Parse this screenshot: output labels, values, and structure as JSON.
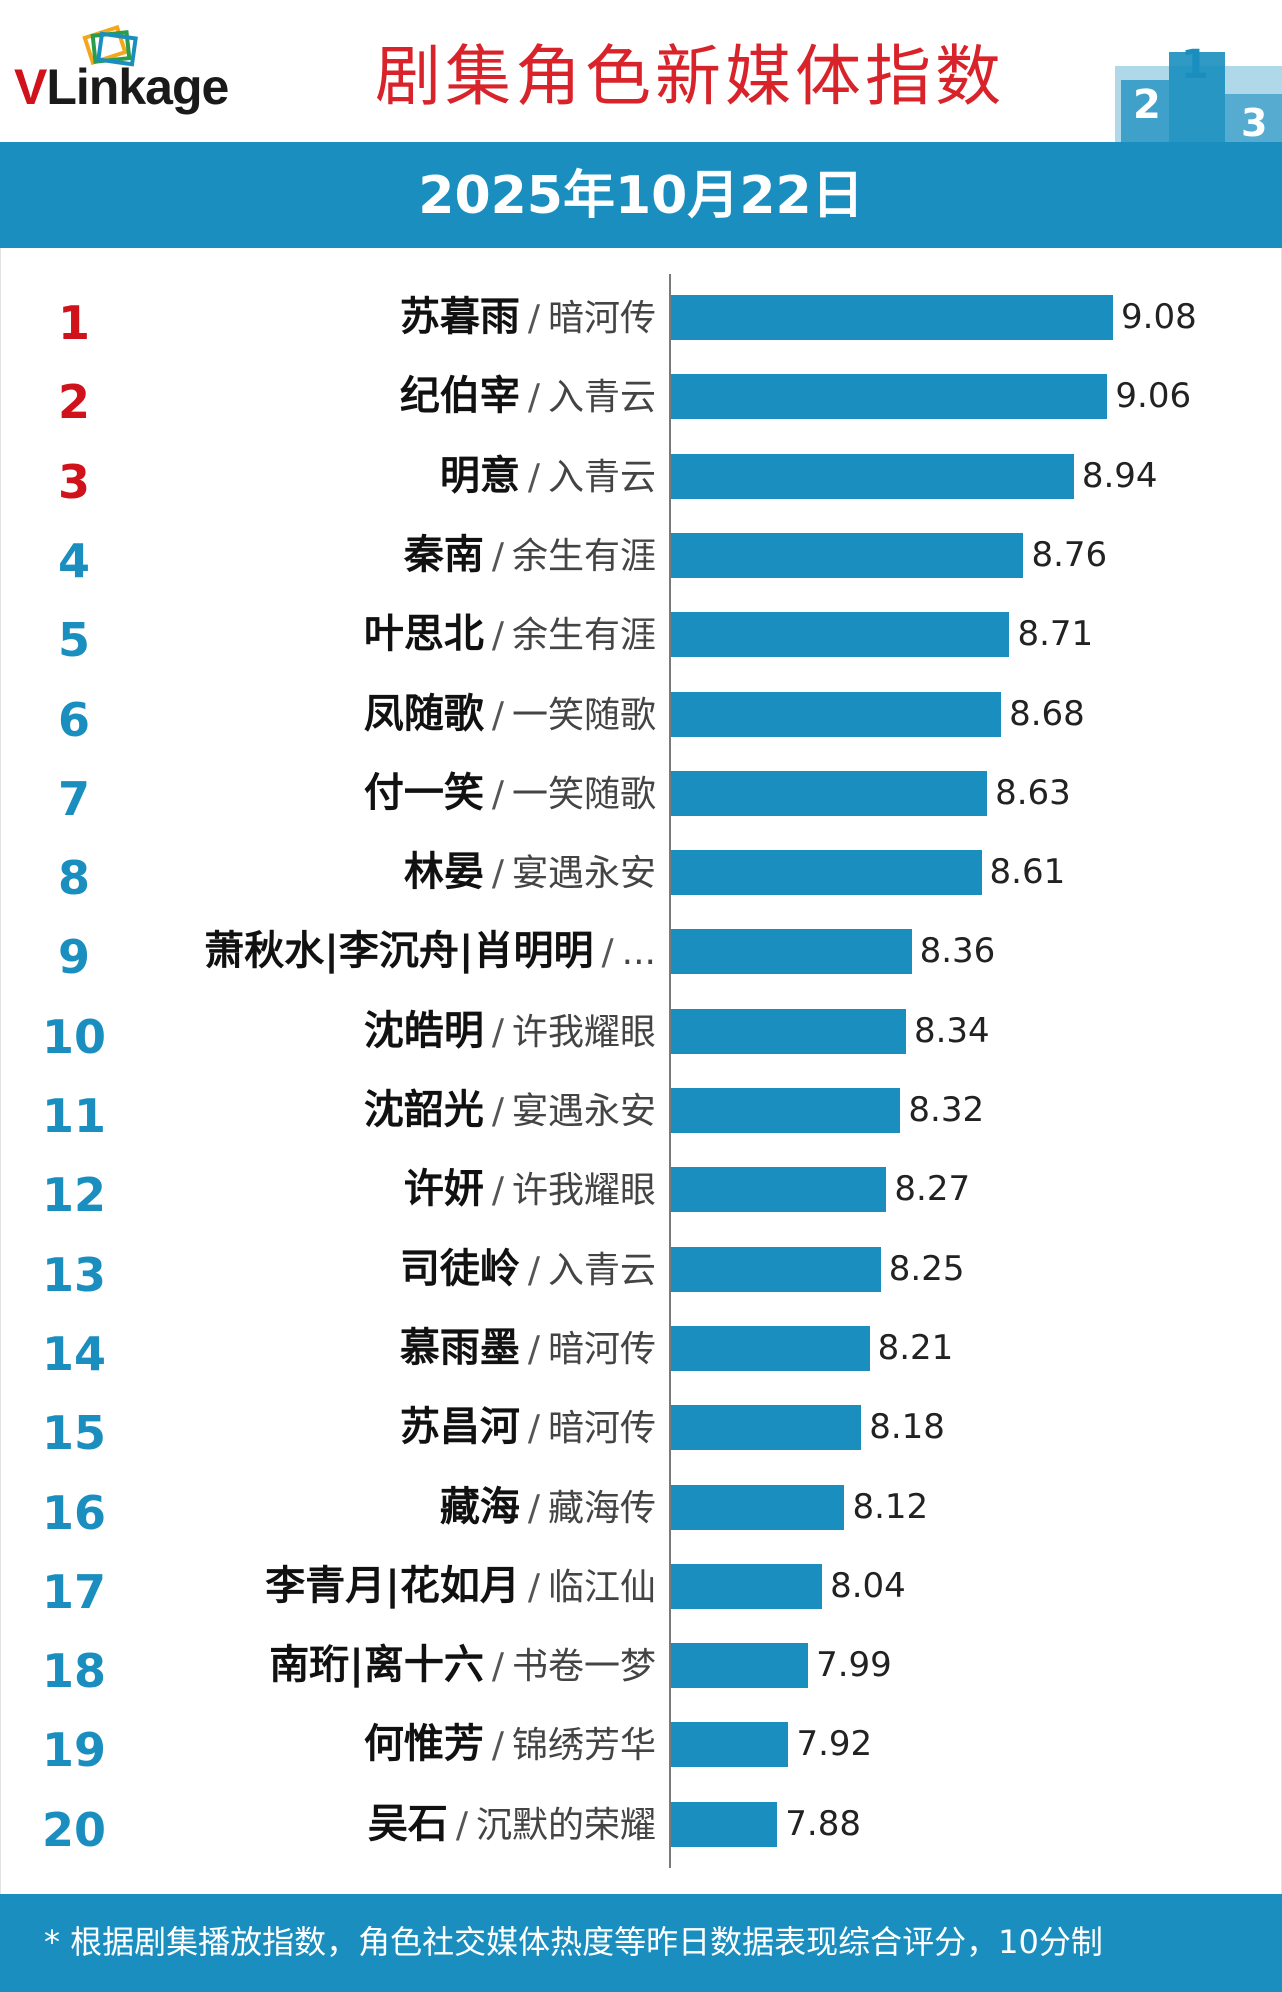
{
  "brand": {
    "logo_v": "V",
    "logo_rest": "Linkage"
  },
  "title": "剧集角色新媒体指数",
  "date": "2025年10月22日",
  "podium_icon": "podium-icon",
  "colors": {
    "accent_blue": "#1a8fbf",
    "title_red": "#d8232a",
    "rank_red": "#d0121b"
  },
  "chart_data": {
    "type": "bar",
    "orientation": "horizontal",
    "value_min": 7.5,
    "value_max": 9.2,
    "separator": "/",
    "items": [
      {
        "rank": "1",
        "role": "苏暮雨",
        "drama": "暗河传",
        "value": 9.08,
        "value_label": "9.08"
      },
      {
        "rank": "2",
        "role": "纪伯宰",
        "drama": "入青云",
        "value": 9.06,
        "value_label": "9.06"
      },
      {
        "rank": "3",
        "role": "明意",
        "drama": "入青云",
        "value": 8.94,
        "value_label": "8.94"
      },
      {
        "rank": "4",
        "role": "秦南",
        "drama": "余生有涯",
        "value": 8.76,
        "value_label": "8.76"
      },
      {
        "rank": "5",
        "role": "叶思北",
        "drama": "余生有涯",
        "value": 8.71,
        "value_label": "8.71"
      },
      {
        "rank": "6",
        "role": "凤随歌",
        "drama": "一笑随歌",
        "value": 8.68,
        "value_label": "8.68"
      },
      {
        "rank": "7",
        "role": "付一笑",
        "drama": "一笑随歌",
        "value": 8.63,
        "value_label": "8.63"
      },
      {
        "rank": "8",
        "role": "林晏",
        "drama": "宴遇永安",
        "value": 8.61,
        "value_label": "8.61"
      },
      {
        "rank": "9",
        "role": "萧秋水|李沉舟|肖明明",
        "drama": "...",
        "value": 8.36,
        "value_label": "8.36"
      },
      {
        "rank": "10",
        "role": "沈皓明",
        "drama": "许我耀眼",
        "value": 8.34,
        "value_label": "8.34"
      },
      {
        "rank": "11",
        "role": "沈韶光",
        "drama": "宴遇永安",
        "value": 8.32,
        "value_label": "8.32"
      },
      {
        "rank": "12",
        "role": "许妍",
        "drama": "许我耀眼",
        "value": 8.27,
        "value_label": "8.27"
      },
      {
        "rank": "13",
        "role": "司徒岭",
        "drama": "入青云",
        "value": 8.25,
        "value_label": "8.25"
      },
      {
        "rank": "14",
        "role": "慕雨墨",
        "drama": "暗河传",
        "value": 8.21,
        "value_label": "8.21"
      },
      {
        "rank": "15",
        "role": "苏昌河",
        "drama": "暗河传",
        "value": 8.18,
        "value_label": "8.18"
      },
      {
        "rank": "16",
        "role": "藏海",
        "drama": "藏海传",
        "value": 8.12,
        "value_label": "8.12"
      },
      {
        "rank": "17",
        "role": "李青月|花如月",
        "drama": "临江仙",
        "value": 8.04,
        "value_label": "8.04"
      },
      {
        "rank": "18",
        "role": "南珩|离十六",
        "drama": "书卷一梦",
        "value": 7.99,
        "value_label": "7.99"
      },
      {
        "rank": "19",
        "role": "何惟芳",
        "drama": "锦绣芳华",
        "value": 7.92,
        "value_label": "7.92"
      },
      {
        "rank": "20",
        "role": "吴石",
        "drama": "沉默的荣耀",
        "value": 7.88,
        "value_label": "7.88"
      }
    ]
  },
  "footnote": "* 根据剧集播放指数，角色社交媒体热度等昨日数据表现综合评分，10分制"
}
